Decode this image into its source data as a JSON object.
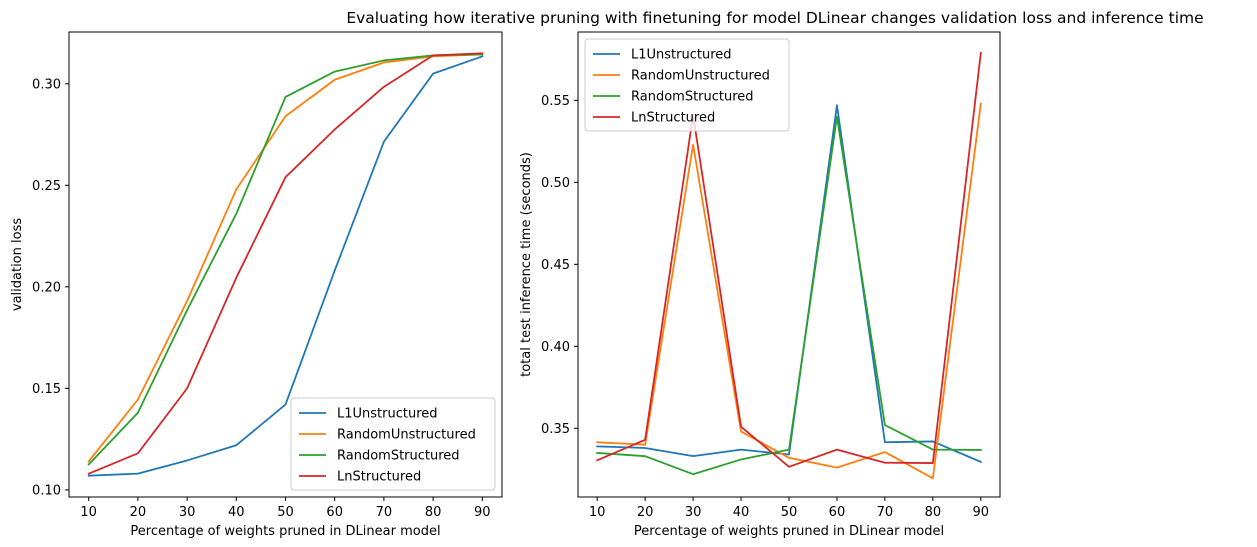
{
  "figure": {
    "title": "Evaluating how iterative pruning with finetuning for model DLinear changes validation loss and inference time"
  },
  "colors": {
    "L1Unstructured": "#1f77b4",
    "RandomUnstructured": "#ff7f0e",
    "RandomStructured": "#2ca02c",
    "LnStructured": "#d62728"
  },
  "chart_data": [
    {
      "type": "line",
      "xlabel": "Percentage of weights pruned in DLinear model",
      "ylabel": "validation loss",
      "x": [
        10,
        20,
        30,
        40,
        50,
        60,
        70,
        80,
        90
      ],
      "xticks": [
        10,
        20,
        30,
        40,
        50,
        60,
        70,
        80,
        90
      ],
      "yticks": [
        0.1,
        0.15,
        0.2,
        0.25,
        0.3
      ],
      "ytick_labels": [
        "0.10",
        "0.15",
        "0.20",
        "0.25",
        "0.30"
      ],
      "xlim": [
        6,
        94
      ],
      "ylim": [
        0.0965,
        0.3255
      ],
      "legend_position": "lower right",
      "grid": false,
      "series": [
        {
          "name": "L1Unstructured",
          "values": [
            0.107,
            0.108,
            0.1145,
            0.122,
            0.142,
            0.208,
            0.2715,
            0.305,
            0.3135
          ]
        },
        {
          "name": "RandomUnstructured",
          "values": [
            0.114,
            0.1445,
            0.193,
            0.248,
            0.284,
            0.302,
            0.3105,
            0.3135,
            0.3145
          ]
        },
        {
          "name": "RandomStructured",
          "values": [
            0.1125,
            0.138,
            0.1885,
            0.236,
            0.2935,
            0.306,
            0.3115,
            0.314,
            0.3145
          ]
        },
        {
          "name": "LnStructured",
          "values": [
            0.108,
            0.118,
            0.15,
            0.2045,
            0.254,
            0.2775,
            0.2985,
            0.314,
            0.315
          ]
        }
      ]
    },
    {
      "type": "line",
      "xlabel": "Percentage of weights pruned in DLinear model",
      "ylabel": "total test inference time (seconds)",
      "x": [
        10,
        20,
        30,
        40,
        50,
        60,
        70,
        80,
        90
      ],
      "xticks": [
        10,
        20,
        30,
        40,
        50,
        60,
        70,
        80,
        90
      ],
      "yticks": [
        0.35,
        0.4,
        0.45,
        0.5,
        0.55
      ],
      "ytick_labels": [
        "0.35",
        "0.40",
        "0.45",
        "0.50",
        "0.55"
      ],
      "xlim": [
        6,
        94
      ],
      "ylim": [
        0.3081,
        0.5917
      ],
      "legend_position": "upper left",
      "grid": false,
      "series": [
        {
          "name": "L1Unstructured",
          "values": [
            0.339,
            0.338,
            0.333,
            0.337,
            0.334,
            0.547,
            0.3415,
            0.342,
            0.3295
          ]
        },
        {
          "name": "RandomUnstructured",
          "values": [
            0.3415,
            0.34,
            0.523,
            0.348,
            0.332,
            0.326,
            0.3355,
            0.3195,
            0.548
          ]
        },
        {
          "name": "RandomStructured",
          "values": [
            0.335,
            0.333,
            0.322,
            0.331,
            0.337,
            0.54,
            0.352,
            0.337,
            0.3368
          ]
        },
        {
          "name": "LnStructured",
          "values": [
            0.3305,
            0.343,
            0.541,
            0.351,
            0.3265,
            0.337,
            0.329,
            0.3288,
            0.579
          ]
        }
      ]
    }
  ]
}
